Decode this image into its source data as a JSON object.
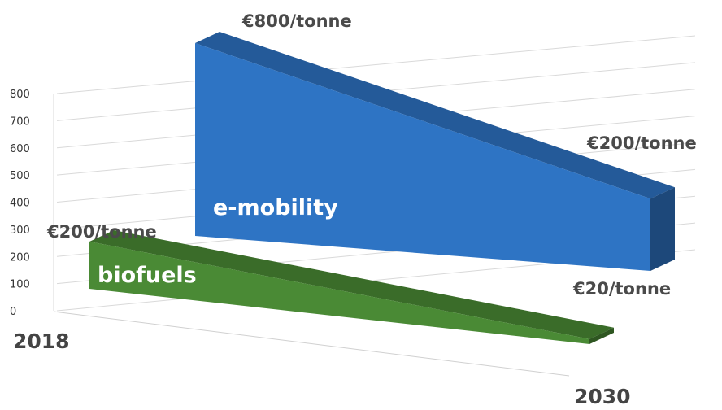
{
  "chart_data": {
    "type": "area",
    "view": "3d-wedge",
    "x": [
      "2018",
      "2030"
    ],
    "y_ticks": [
      "0",
      "100",
      "200",
      "300",
      "400",
      "500",
      "600",
      "700",
      "800"
    ],
    "ylim": [
      0,
      800
    ],
    "grid": true,
    "series": [
      {
        "name": "e-mobility",
        "values": [
          800,
          200
        ],
        "color": "#2e74c4",
        "annotations": [
          "€800/tonne",
          "€200/tonne"
        ]
      },
      {
        "name": "biofuels",
        "values": [
          200,
          20
        ],
        "color": "#4a8a35",
        "annotations": [
          "€200/tonne",
          "€20/tonne"
        ]
      }
    ]
  }
}
